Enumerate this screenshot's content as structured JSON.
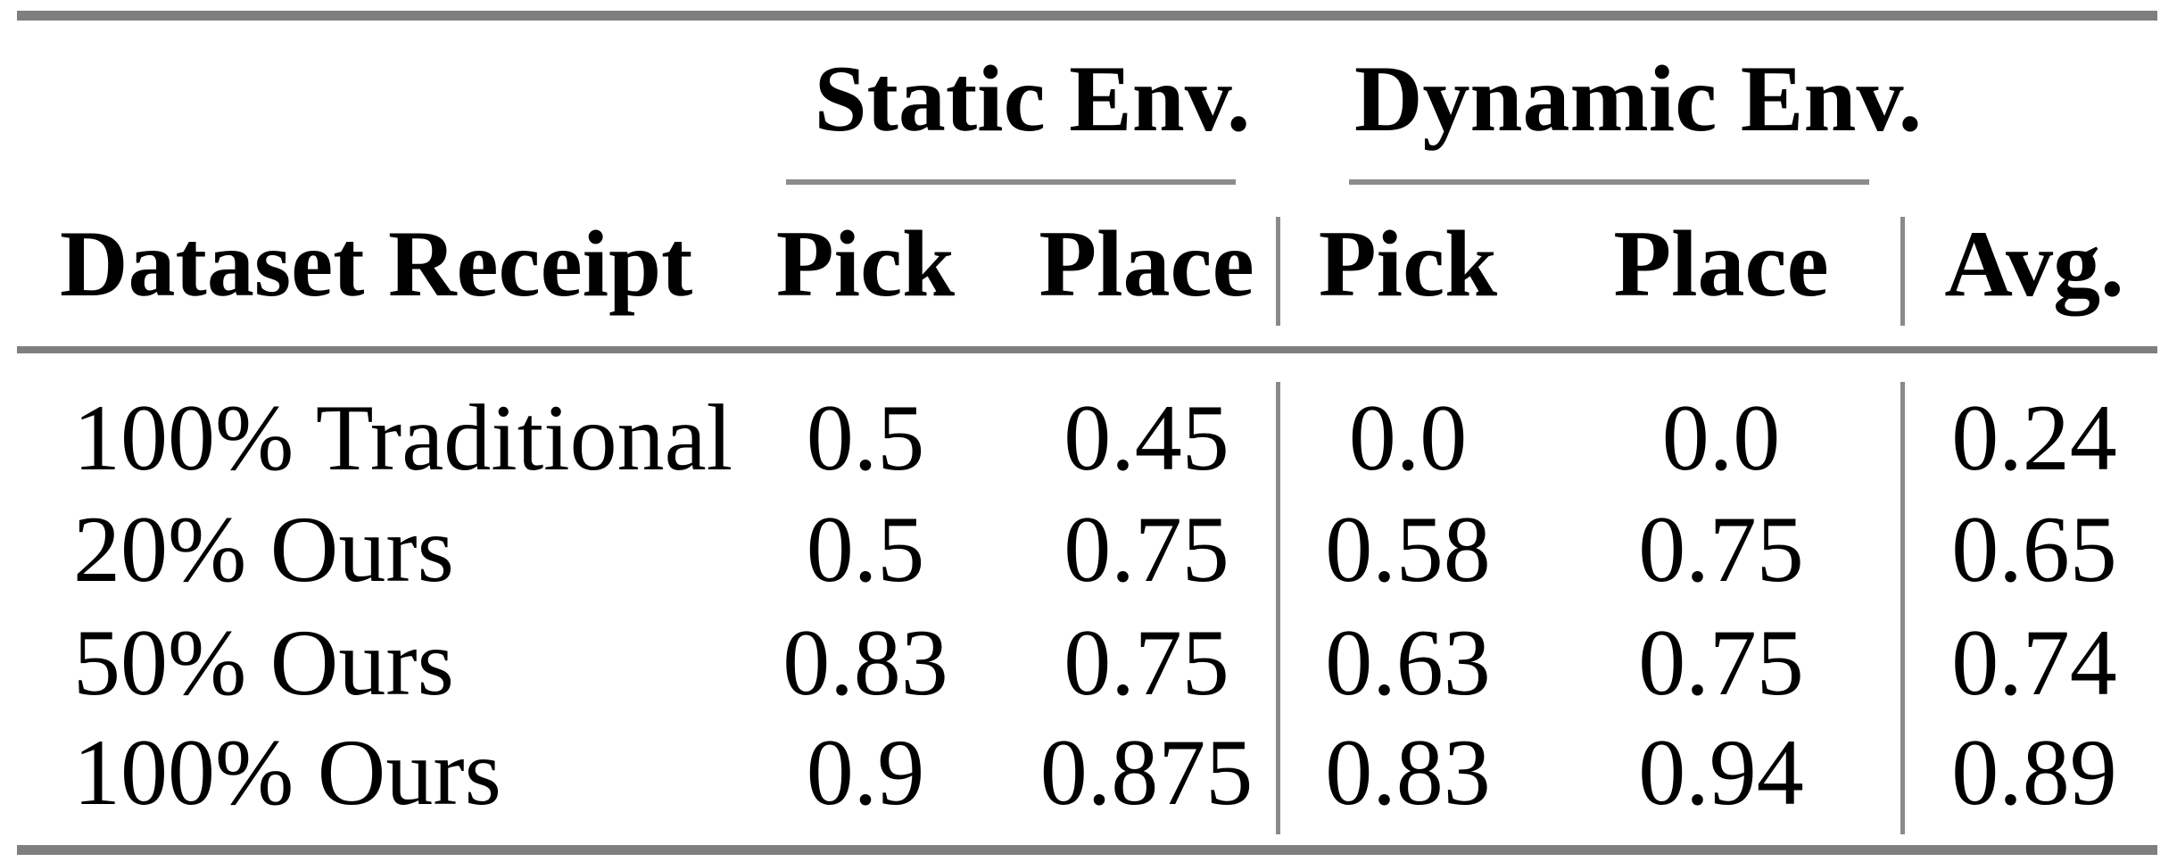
{
  "table": {
    "groups": {
      "static": "Static Env.",
      "dynamic": "Dynamic Env."
    },
    "columns": {
      "dataset": "Dataset Receipt",
      "static_pick": "Pick",
      "static_place": "Place",
      "dynamic_pick": "Pick",
      "dynamic_place": "Place",
      "avg": "Avg."
    },
    "rows": [
      {
        "label": "100% Traditional",
        "static_pick": "0.5",
        "static_place": "0.45",
        "dynamic_pick": "0.0",
        "dynamic_place": "0.0",
        "avg": "0.24"
      },
      {
        "label": "20% Ours",
        "static_pick": "0.5",
        "static_place": "0.75",
        "dynamic_pick": "0.58",
        "dynamic_place": "0.75",
        "avg": "0.65"
      },
      {
        "label": "50% Ours",
        "static_pick": "0.83",
        "static_place": "0.75",
        "dynamic_pick": "0.63",
        "dynamic_place": "0.75",
        "avg": "0.74"
      },
      {
        "label": "100% Ours",
        "static_pick": "0.9",
        "static_place": "0.875",
        "dynamic_pick": "0.83",
        "dynamic_place": "0.94",
        "avg": "0.89"
      }
    ],
    "colors": {
      "rule_heavy": "#7f7f7f",
      "rule_light": "#8c8c8c",
      "separator": "#8a8a8a",
      "text": "#000000"
    }
  }
}
